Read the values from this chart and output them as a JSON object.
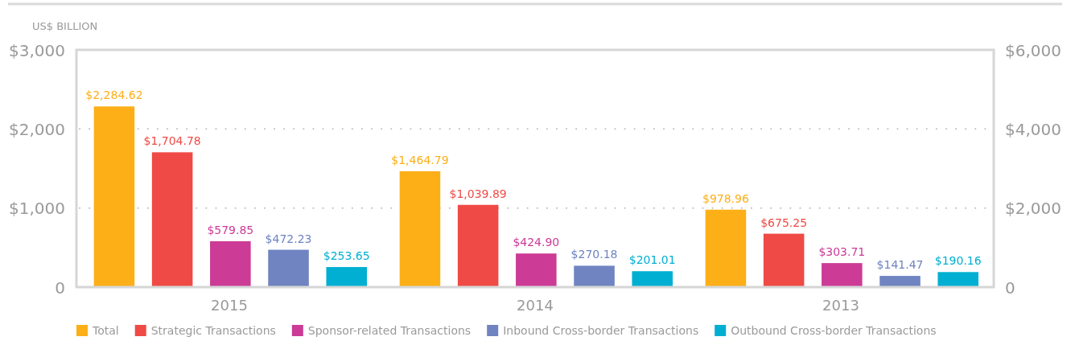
{
  "chart_data": {
    "type": "bar",
    "ylabel": "US$ BILLION",
    "categories": [
      "2015",
      "2014",
      "2013"
    ],
    "series": [
      {
        "name": "Total",
        "color": "#fcaf17",
        "values": [
          2284.62,
          1464.79,
          978.96
        ],
        "value_labels": [
          "$2,284.62",
          "$1,464.79",
          "$978.96"
        ]
      },
      {
        "name": "Strategic Transactions",
        "color": "#ef4a45",
        "values": [
          1704.78,
          1039.89,
          675.25
        ],
        "value_labels": [
          "$1,704.78",
          "$1,039.89",
          "$675.25"
        ]
      },
      {
        "name": "Sponsor-related Transactions",
        "color": "#cc3b96",
        "values": [
          579.85,
          424.9,
          303.71
        ],
        "value_labels": [
          "$579.85",
          "$424.90",
          "$303.71"
        ]
      },
      {
        "name": "Inbound Cross-border Transactions",
        "color": "#6f84c1",
        "values": [
          472.23,
          270.18,
          141.47
        ],
        "value_labels": [
          "$472.23",
          "$270.18",
          "$141.47"
        ]
      },
      {
        "name": "Outbound Cross-border Transactions",
        "color": "#00afd1",
        "values": [
          253.65,
          201.01,
          190.16
        ],
        "value_labels": [
          "$253.65",
          "$201.01",
          "$190.16"
        ]
      }
    ],
    "ylim": [
      0,
      3000
    ],
    "yticks": [
      0,
      {
        "value": 1000,
        "label": "$1,000"
      },
      {
        "value": 2000,
        "label": "$2,000"
      },
      {
        "value": 3000,
        "label": "$3,000"
      }
    ],
    "y2lim": [
      0,
      6000
    ],
    "y2ticks": [
      0,
      {
        "value": 2000,
        "label": "$2,000"
      },
      {
        "value": 4000,
        "label": "$4,000"
      },
      {
        "value": 6000,
        "label": "$6,000"
      }
    ],
    "grid": "y",
    "legend": "bottom"
  }
}
